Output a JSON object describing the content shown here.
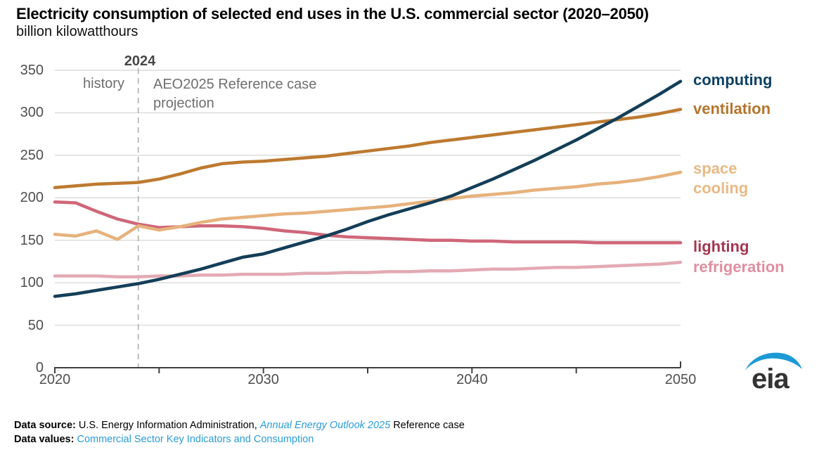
{
  "chart_data": {
    "type": "line",
    "title": "Electricity consumption of selected end uses in the U.S. commercial sector (2020–2050)",
    "subtitle": "billion kilowatthours",
    "ylabel": "billion kilowatthours",
    "xlabel": "",
    "x": [
      2020,
      2021,
      2022,
      2023,
      2024,
      2025,
      2026,
      2027,
      2028,
      2029,
      2030,
      2031,
      2032,
      2033,
      2034,
      2035,
      2036,
      2037,
      2038,
      2039,
      2040,
      2041,
      2042,
      2043,
      2044,
      2045,
      2046,
      2047,
      2048,
      2049,
      2050
    ],
    "xlim": [
      2020,
      2050
    ],
    "ylim": [
      0,
      350
    ],
    "yticks": [
      0,
      50,
      100,
      150,
      200,
      250,
      300,
      350
    ],
    "xticks": [
      2020,
      2030,
      2040,
      2050
    ],
    "xticks_minor": [
      2025,
      2035,
      2045
    ],
    "grid": "horizontal",
    "history_end": 2024,
    "annotations": {
      "divider_year": "2024",
      "history_label": "history",
      "projection_label": "AEO2025 Reference case projection"
    },
    "legend_position": "right",
    "series": [
      {
        "id": "computing",
        "name": "computing",
        "z": 5,
        "color": "#143e58",
        "label_color": "#0f4264",
        "values": [
          84,
          87,
          91,
          95,
          99,
          104,
          110,
          116,
          123,
          130,
          134,
          141,
          148,
          155,
          163,
          172,
          180,
          187,
          194,
          202,
          212,
          222,
          233,
          244,
          256,
          268,
          281,
          294,
          308,
          322,
          337
        ]
      },
      {
        "id": "ventilation",
        "name": "ventilation",
        "z": 4,
        "color": "#bd7a30",
        "label_color": "#b4752d",
        "values": [
          212,
          214,
          216,
          217,
          218,
          222,
          228,
          235,
          240,
          242,
          243,
          245,
          247,
          249,
          252,
          255,
          258,
          261,
          265,
          268,
          271,
          274,
          277,
          280,
          283,
          286,
          289,
          292,
          295,
          299,
          304
        ]
      },
      {
        "id": "space-cooling",
        "name": "space cooling",
        "z": 3,
        "color": "#e7b27d",
        "label_color": "#eab985",
        "values": [
          157,
          155,
          161,
          151,
          167,
          162,
          166,
          171,
          175,
          177,
          179,
          181,
          182,
          184,
          186,
          188,
          190,
          193,
          196,
          199,
          202,
          204,
          206,
          209,
          211,
          213,
          216,
          218,
          221,
          225,
          230
        ]
      },
      {
        "id": "lighting",
        "name": "lighting",
        "z": 1,
        "color": "#cf6779",
        "label_color": "#a43850",
        "values": [
          195,
          194,
          184,
          175,
          169,
          165,
          166,
          167,
          167,
          166,
          164,
          161,
          159,
          156,
          154,
          153,
          152,
          151,
          150,
          150,
          149,
          149,
          148,
          148,
          148,
          148,
          147,
          147,
          147,
          147,
          147
        ]
      },
      {
        "id": "refrigeration",
        "name": "refrigeration",
        "z": 2,
        "color": "#e3aab4",
        "label_color": "#e08fa0",
        "values": [
          108,
          108,
          108,
          107,
          107,
          108,
          108,
          109,
          109,
          110,
          110,
          110,
          111,
          111,
          112,
          112,
          113,
          113,
          114,
          114,
          115,
          116,
          116,
          117,
          118,
          118,
          119,
          120,
          121,
          122,
          124
        ]
      }
    ]
  },
  "colors": {
    "grid": "#dadada",
    "axis_line": "#3f3f3f",
    "dashed_line": "#b0b0b0",
    "tick_label": "#4f4f4f",
    "annotation": "#6f6f6f",
    "link": "#2b9cd8"
  },
  "footer": {
    "source_label": "Data source:",
    "source_text": " U.S. Energy Information Administration, ",
    "source_link": "Annual Energy Outlook 2025",
    "source_suffix": " Reference case",
    "values_label": "Data values:",
    "values_link": " Commercial Sector Key Indicators and Consumption"
  },
  "logo": {
    "text": "eia",
    "swoosh_color": "#1d9ad6",
    "text_color": "#333333"
  }
}
